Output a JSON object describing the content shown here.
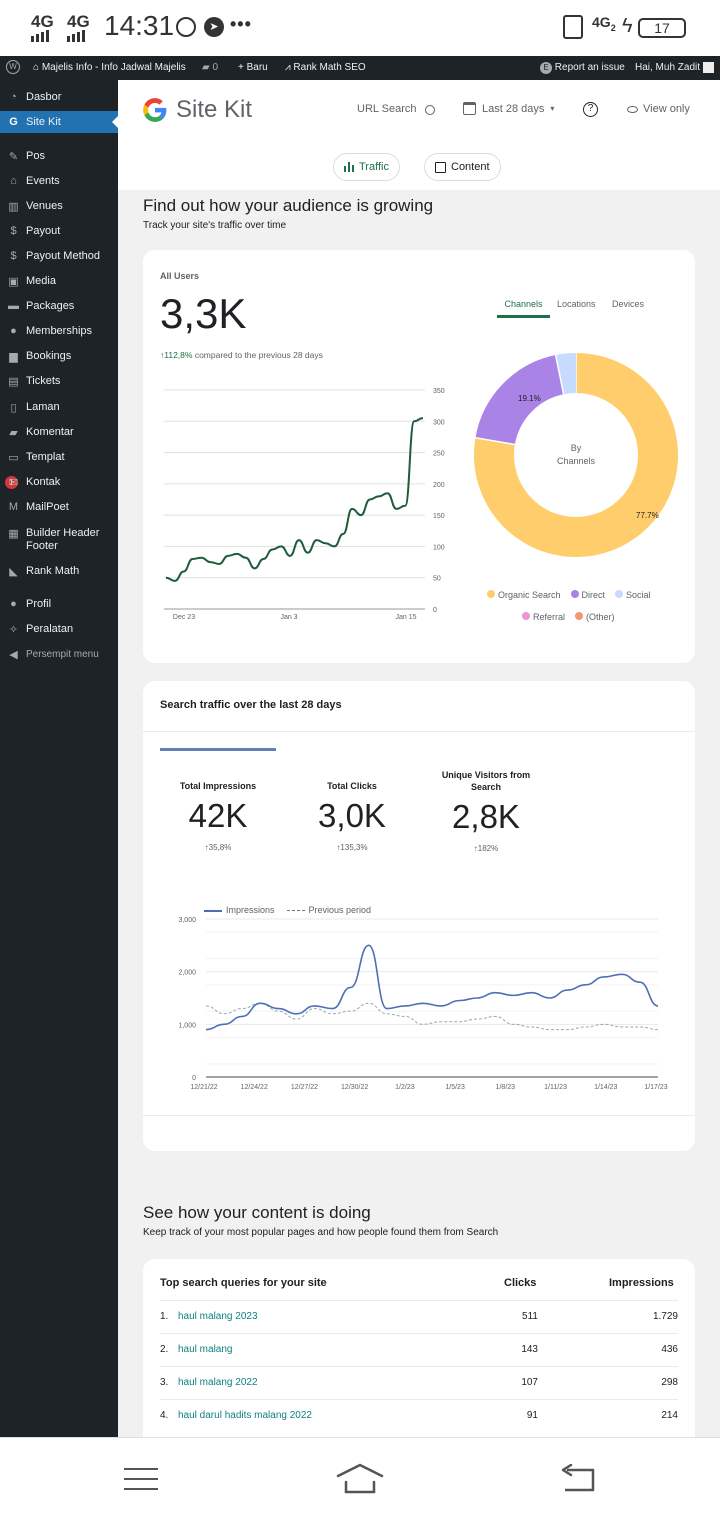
{
  "status_bar": {
    "net1": "4G",
    "net2": "4G",
    "time": "14:31",
    "more": "•••",
    "net_right": "4G",
    "net_right_sub": "2",
    "battery": "17"
  },
  "admin_bar": {
    "site": "Majelis Info - Info Jadwal Majelis",
    "comments": "0",
    "new": "Baru",
    "rankmath": "Rank Math SEO",
    "report": "Report an issue",
    "greeting": "Hai, Muh Zadit"
  },
  "sidebar": {
    "items": [
      {
        "label": "Dasbor",
        "icon": "gauge-icon"
      },
      {
        "label": "Site Kit",
        "icon": "google-g-icon"
      },
      {
        "label": "Pos",
        "icon": "pin-icon"
      },
      {
        "label": "Events",
        "icon": "home-icon"
      },
      {
        "label": "Venues",
        "icon": "city-icon"
      },
      {
        "label": "Payout",
        "icon": "dollar-icon"
      },
      {
        "label": "Payout Method",
        "icon": "dollar-icon"
      },
      {
        "label": "Media",
        "icon": "media-icon"
      },
      {
        "label": "Packages",
        "icon": "cart-icon"
      },
      {
        "label": "Memberships",
        "icon": "user-icon"
      },
      {
        "label": "Bookings",
        "icon": "briefcase-icon"
      },
      {
        "label": "Tickets",
        "icon": "tickets-icon"
      },
      {
        "label": "Laman",
        "icon": "page-icon"
      },
      {
        "label": "Komentar",
        "icon": "comment-icon"
      },
      {
        "label": "Templat",
        "icon": "folder-icon"
      },
      {
        "label": "Kontak",
        "icon": "mail-icon",
        "badge": "1"
      },
      {
        "label": "MailPoet",
        "icon": "mailpoet-icon"
      },
      {
        "label": "Builder Header Footer",
        "icon": "grid-icon"
      },
      {
        "label": "Rank Math",
        "icon": "chart-icon"
      },
      {
        "label": "Profil",
        "icon": "user-icon"
      },
      {
        "label": "Peralatan",
        "icon": "wrench-icon"
      },
      {
        "label": "Persempit menu",
        "icon": "collapse-icon"
      }
    ]
  },
  "header": {
    "logo_text": "Site Kit",
    "url_search": "URL Search",
    "date_range": "Last 28 days",
    "view_only": "View only"
  },
  "tabs": {
    "traffic": "Traffic",
    "content": "Content"
  },
  "audience": {
    "title": "Find out how your audience is growing",
    "subtitle": "Track your site's traffic over time",
    "all_users_label": "All Users",
    "all_users_value": "3,3K",
    "change": "112,8%",
    "change_text": "compared to the previous 28 days",
    "tabs": [
      "Channels",
      "Locations",
      "Devices"
    ],
    "donut_center_line1": "By",
    "donut_center_line2": "Channels",
    "legend": [
      "Organic Search",
      "Direct",
      "Social",
      "Referral",
      "(Other)"
    ]
  },
  "search_traffic": {
    "title": "Search traffic over the last 28 days",
    "metrics": [
      {
        "label": "Total Impressions",
        "value": "42K",
        "change": "35,8%"
      },
      {
        "label": "Total Clicks",
        "value": "3,0K",
        "change": "135,3%"
      },
      {
        "label": "Unique Visitors from Search",
        "value": "2,8K",
        "change": "182%"
      }
    ],
    "legend_impressions": "Impressions",
    "legend_previous": "Previous period"
  },
  "content": {
    "title": "See how your content is doing",
    "subtitle": "Keep track of your most popular pages and how people found them from Search",
    "table_title": "Top search queries for your site",
    "col_clicks": "Clicks",
    "col_impressions": "Impressions",
    "rows": [
      {
        "num": "1.",
        "query": "haul malang 2023",
        "clicks": "511",
        "impressions": "1.729"
      },
      {
        "num": "2.",
        "query": "haul malang",
        "clicks": "143",
        "impressions": "436"
      },
      {
        "num": "3.",
        "query": "haul malang 2022",
        "clicks": "107",
        "impressions": "298"
      },
      {
        "num": "4.",
        "query": "haul darul hadits malang 2022",
        "clicks": "91",
        "impressions": "214"
      }
    ]
  },
  "chart_data": [
    {
      "type": "line",
      "ylabel": "",
      "xlabel": "",
      "x_ticks": [
        "Dec 23",
        "Jan 3",
        "Jan 15"
      ],
      "ylim": [
        0,
        350
      ],
      "y_ticks": [
        "0",
        "50",
        "100",
        "150",
        "200",
        "250",
        "300",
        "350"
      ],
      "color": "#1e5c3a",
      "series": [
        {
          "values": [
            50,
            45,
            60,
            80,
            82,
            75,
            72,
            85,
            88,
            82,
            65,
            80,
            95,
            100,
            85,
            110,
            90,
            110,
            105,
            100,
            120,
            160,
            150,
            175,
            180,
            185,
            160,
            165,
            300,
            305
          ]
        }
      ]
    },
    {
      "type": "pie",
      "categories": [
        "Organic Search",
        "Direct",
        "Social"
      ],
      "values": [
        77.7,
        19.1,
        3.2
      ],
      "labels": [
        "77.7%",
        "19.1%"
      ],
      "colors": [
        "#ffcd6c",
        "#a983e6",
        "#c6dbff"
      ]
    },
    {
      "type": "line",
      "x_ticks": [
        "12/21/22",
        "12/24/22",
        "12/27/22",
        "12/30/22",
        "1/2/23",
        "1/5/23",
        "1/8/23",
        "1/11/23",
        "1/14/23",
        "1/17/23"
      ],
      "ylim": [
        0,
        3000
      ],
      "y_ticks": [
        "0",
        "1,000",
        "2,000",
        "3,000"
      ],
      "series": [
        {
          "name": "Impressions",
          "color": "#4e6fb4",
          "values": [
            900,
            1000,
            1150,
            1400,
            1300,
            1200,
            1350,
            1300,
            1700,
            2500,
            1300,
            1350,
            1400,
            1350,
            1450,
            1500,
            1600,
            1550,
            1600,
            1500,
            1650,
            1750,
            1900,
            1950,
            1800,
            1350
          ]
        },
        {
          "name": "Previous period",
          "color": "#9aa5b6",
          "values": [
            1350,
            1200,
            1300,
            1400,
            1250,
            1100,
            1300,
            1200,
            1250,
            1400,
            1200,
            1150,
            1000,
            1050,
            1050,
            1100,
            1150,
            1000,
            950,
            900,
            900,
            950,
            1000,
            950,
            950,
            900
          ]
        }
      ]
    }
  ]
}
